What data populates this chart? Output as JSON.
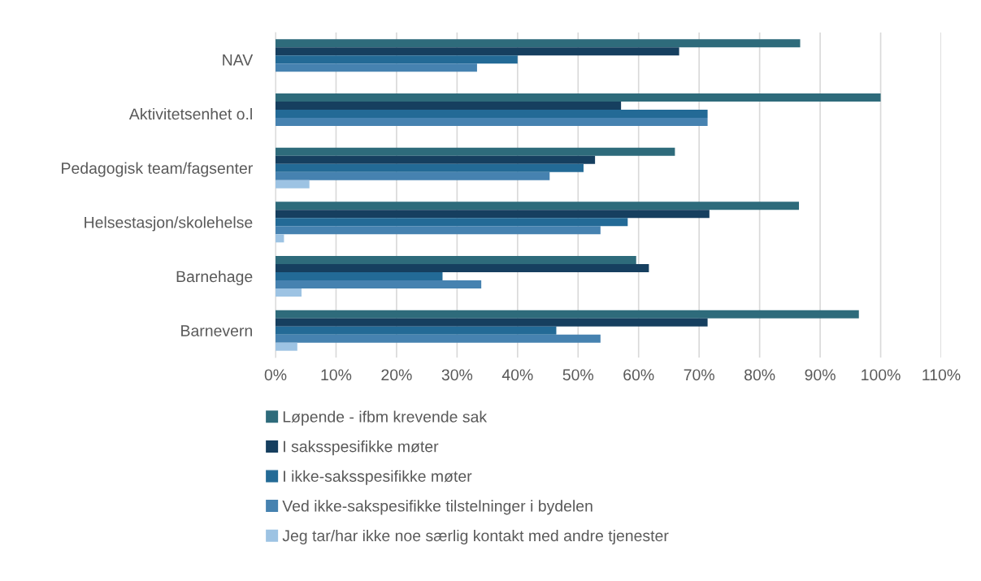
{
  "chart_data": {
    "type": "bar",
    "orientation": "horizontal",
    "categories": [
      "NAV",
      "Aktivitetsenhet o.l",
      "Pedagogisk team/fagsenter",
      "Helsestasjon/skolehelse",
      "Barnehage",
      "Barnevern"
    ],
    "series": [
      {
        "name": "Løpende - ifbm krevende sak",
        "color": "#2e6b7b",
        "values": [
          86.7,
          100,
          66.0,
          86.5,
          59.6,
          96.4
        ]
      },
      {
        "name": "I saksspesifikke møter",
        "color": "#163f5f",
        "values": [
          66.7,
          57.1,
          52.8,
          71.7,
          61.7,
          71.4
        ]
      },
      {
        "name": "I ikke-saksspesifikke møter",
        "color": "#236a96",
        "values": [
          40,
          71.4,
          50.9,
          58.2,
          27.6,
          46.4
        ]
      },
      {
        "name": "Ved ikke-sakspesifikke tilstelninger i bydelen",
        "color": "#4682b0",
        "values": [
          33.3,
          71.4,
          45.3,
          53.7,
          34.0,
          53.7
        ]
      },
      {
        "name": "Jeg tar/har ikke noe særlig kontakt med andre tjenester",
        "color": "#9dc3e3",
        "values": [
          0,
          0,
          5.6,
          1.4,
          4.3,
          3.6
        ]
      }
    ],
    "xlim": [
      0,
      110
    ],
    "xticks": [
      {
        "value": 0,
        "label": "0%"
      },
      {
        "value": 10,
        "label": "10%"
      },
      {
        "value": 20,
        "label": "20%"
      },
      {
        "value": 30,
        "label": "30%"
      },
      {
        "value": 40,
        "label": "40%"
      },
      {
        "value": 50,
        "label": "50%"
      },
      {
        "value": 60,
        "label": "60%"
      },
      {
        "value": 70,
        "label": "70%"
      },
      {
        "value": 80,
        "label": "80%"
      },
      {
        "value": 90,
        "label": "90%"
      },
      {
        "value": 100,
        "label": "100%"
      },
      {
        "value": 110,
        "label": "110%"
      }
    ],
    "grid": "x",
    "legend": "bottom"
  }
}
